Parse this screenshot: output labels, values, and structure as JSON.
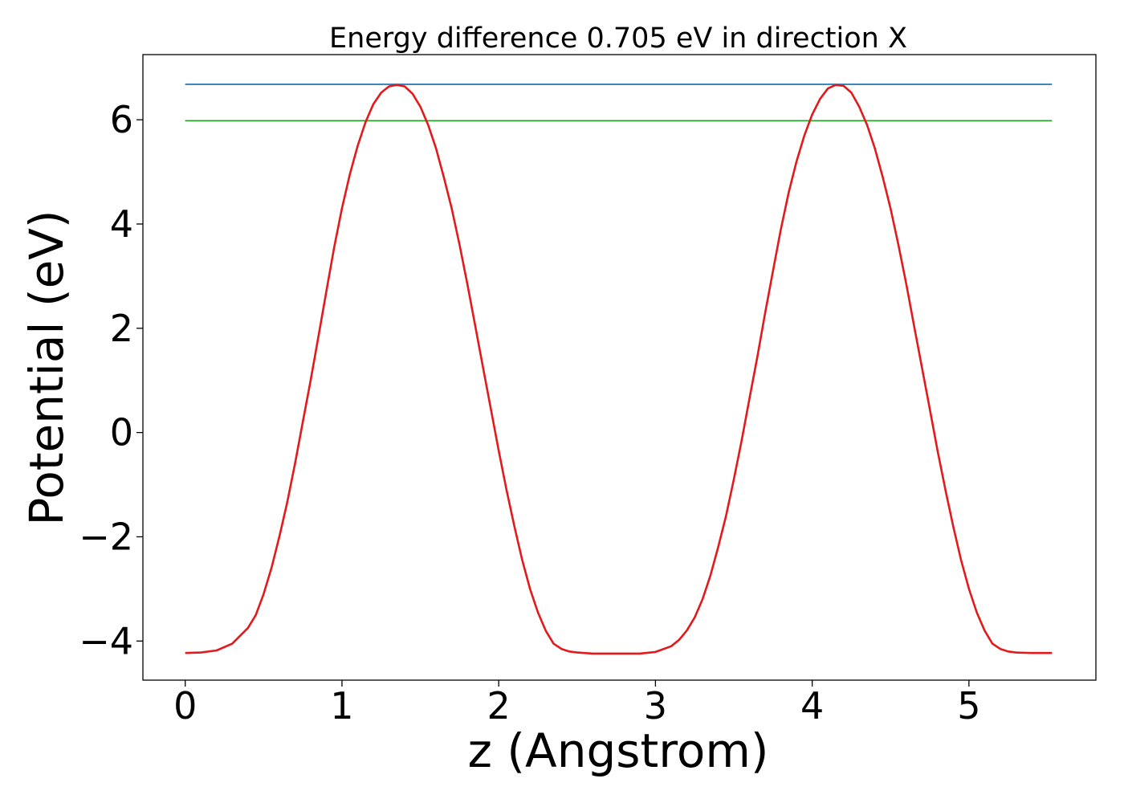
{
  "chart_data": {
    "type": "line",
    "title": "Energy difference 0.705 eV in direction X",
    "xlabel": "z (Angstrom)",
    "ylabel": "Potential (eV)",
    "xlim": [
      -0.27,
      5.81
    ],
    "ylim": [
      -4.75,
      7.25
    ],
    "grid": false,
    "legend": "none",
    "xticks": [
      0,
      1,
      2,
      3,
      4,
      5
    ],
    "xtick_labels": [
      "0",
      "1",
      "2",
      "3",
      "4",
      "5"
    ],
    "yticks": [
      -4,
      -2,
      0,
      2,
      4,
      6
    ],
    "ytick_labels": [
      "−4",
      "−2",
      "0",
      "2",
      "4",
      "6"
    ],
    "series": [
      {
        "color": "#1f77b4",
        "style": "horizontal-line",
        "x": [
          0,
          5.53
        ],
        "y": [
          6.68,
          6.68
        ]
      },
      {
        "color": "#2ca02c",
        "style": "horizontal-line",
        "x": [
          0,
          5.53
        ],
        "y": [
          5.98,
          5.98
        ]
      },
      {
        "color": "#e31a1c",
        "style": "curve",
        "x": [
          0,
          0.1,
          0.2,
          0.3,
          0.35,
          0.4,
          0.45,
          0.5,
          0.55,
          0.6,
          0.65,
          0.7,
          0.75,
          0.8,
          0.85,
          0.9,
          0.95,
          1.0,
          1.05,
          1.1,
          1.15,
          1.2,
          1.25,
          1.3,
          1.35,
          1.4,
          1.45,
          1.5,
          1.55,
          1.6,
          1.65,
          1.7,
          1.75,
          1.8,
          1.85,
          1.9,
          1.95,
          2.0,
          2.05,
          2.1,
          2.15,
          2.2,
          2.25,
          2.3,
          2.35,
          2.4,
          2.45,
          2.5,
          2.6,
          2.7,
          2.8,
          2.9,
          3.0,
          3.1,
          3.15,
          3.2,
          3.25,
          3.3,
          3.35,
          3.4,
          3.45,
          3.5,
          3.55,
          3.6,
          3.65,
          3.7,
          3.75,
          3.8,
          3.85,
          3.9,
          3.95,
          4.0,
          4.05,
          4.1,
          4.15,
          4.2,
          4.25,
          4.3,
          4.35,
          4.4,
          4.45,
          4.5,
          4.55,
          4.6,
          4.65,
          4.7,
          4.75,
          4.8,
          4.85,
          4.9,
          4.95,
          5.0,
          5.05,
          5.1,
          5.15,
          5.2,
          5.25,
          5.3,
          5.4,
          5.53
        ],
        "y": [
          -4.23,
          -4.22,
          -4.18,
          -4.05,
          -3.9,
          -3.75,
          -3.5,
          -3.1,
          -2.6,
          -2.0,
          -1.35,
          -0.6,
          0.2,
          1.0,
          1.85,
          2.7,
          3.55,
          4.3,
          4.95,
          5.5,
          5.95,
          6.3,
          6.52,
          6.64,
          6.67,
          6.64,
          6.5,
          6.25,
          5.9,
          5.45,
          4.9,
          4.3,
          3.6,
          2.85,
          2.05,
          1.25,
          0.45,
          -0.35,
          -1.1,
          -1.8,
          -2.45,
          -3.0,
          -3.45,
          -3.8,
          -4.05,
          -4.15,
          -4.2,
          -4.22,
          -4.24,
          -4.24,
          -4.24,
          -4.24,
          -4.21,
          -4.1,
          -3.98,
          -3.8,
          -3.55,
          -3.2,
          -2.75,
          -2.2,
          -1.6,
          -0.9,
          -0.15,
          0.65,
          1.45,
          2.3,
          3.1,
          3.9,
          4.6,
          5.2,
          5.7,
          6.1,
          6.4,
          6.6,
          6.67,
          6.65,
          6.52,
          6.25,
          5.9,
          5.45,
          4.9,
          4.3,
          3.6,
          2.85,
          2.05,
          1.25,
          0.45,
          -0.35,
          -1.1,
          -1.8,
          -2.45,
          -3.0,
          -3.45,
          -3.8,
          -4.05,
          -4.15,
          -4.2,
          -4.22,
          -4.23,
          -4.23
        ]
      }
    ]
  }
}
